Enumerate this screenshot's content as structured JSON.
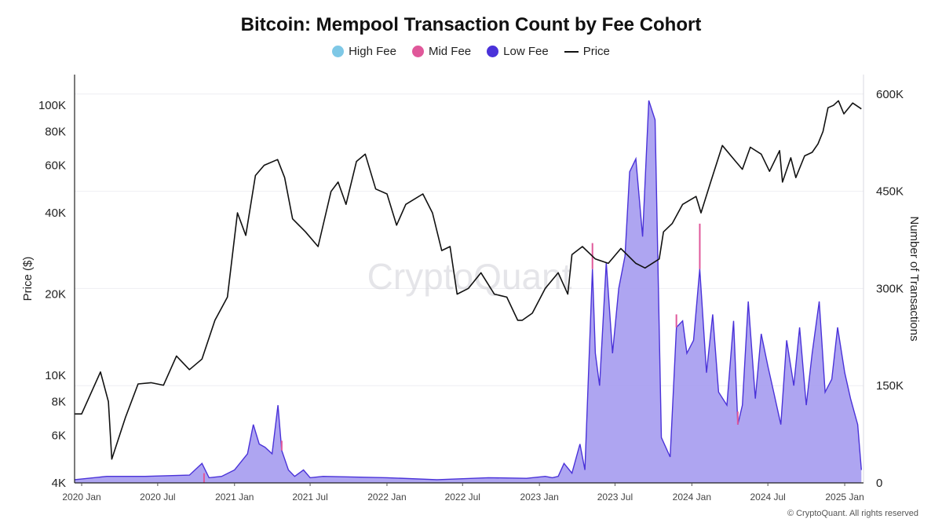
{
  "chart_data": {
    "type": "line",
    "title": "Bitcoin: Mempool Transaction Count by Fee Cohort",
    "legend": [
      "High Fee",
      "Mid Fee",
      "Low Fee",
      "Price"
    ],
    "legend_placement": "top-center",
    "colors": {
      "high_fee": "#7ec8e6",
      "mid_fee": "#e0589a",
      "low_fee": "#4a32d9",
      "low_fee_fill": "#a59bf0",
      "price": "#111111"
    },
    "y_left": {
      "label": "Price ($)",
      "scale": "log",
      "range": [
        4000,
        130000
      ],
      "ticks": [
        4000,
        6000,
        8000,
        10000,
        20000,
        40000,
        60000,
        80000,
        100000
      ],
      "tick_labels": [
        "4K",
        "6K",
        "8K",
        "10K",
        "20K",
        "40K",
        "60K",
        "80K",
        "100K"
      ]
    },
    "y_right": {
      "label": "Number of Transactions",
      "scale": "linear",
      "range": [
        0,
        630000
      ],
      "ticks": [
        0,
        150000,
        300000,
        450000,
        600000
      ],
      "tick_labels": [
        "0",
        "150K",
        "300K",
        "450K",
        "600K"
      ]
    },
    "x_axis": {
      "range": [
        "2019-12-15",
        "2025-02-15"
      ],
      "ticks": [
        "2020-01-01",
        "2020-07-01",
        "2021-01-01",
        "2021-07-01",
        "2022-01-01",
        "2022-07-01",
        "2023-01-01",
        "2023-07-01",
        "2024-01-01",
        "2024-07-01",
        "2025-01-01"
      ],
      "tick_labels": [
        "2020 Jan",
        "2020 Jul",
        "2021 Jan",
        "2021 Jul",
        "2022 Jan",
        "2022 Jul",
        "2023 Jan",
        "2023 Jul",
        "2024 Jan",
        "2024 Jul",
        "2025 Jan"
      ]
    },
    "grid": true,
    "series": [
      {
        "name": "Price",
        "axis": "left",
        "x": [
          "2019-12-15",
          "2020-01-01",
          "2020-02-15",
          "2020-03-05",
          "2020-03-13",
          "2020-04-15",
          "2020-05-15",
          "2020-06-15",
          "2020-07-15",
          "2020-08-15",
          "2020-09-15",
          "2020-10-15",
          "2020-11-15",
          "2020-12-15",
          "2021-01-08",
          "2021-01-28",
          "2021-02-20",
          "2021-03-13",
          "2021-04-14",
          "2021-05-01",
          "2021-05-20",
          "2021-06-20",
          "2021-07-20",
          "2021-08-20",
          "2021-09-06",
          "2021-09-25",
          "2021-10-20",
          "2021-11-10",
          "2021-12-05",
          "2022-01-01",
          "2022-01-24",
          "2022-02-15",
          "2022-03-28",
          "2022-04-20",
          "2022-05-12",
          "2022-06-01",
          "2022-06-18",
          "2022-07-15",
          "2022-08-14",
          "2022-09-15",
          "2022-10-15",
          "2022-11-10",
          "2022-11-21",
          "2022-12-15",
          "2023-01-15",
          "2023-02-15",
          "2023-03-10",
          "2023-03-20",
          "2023-04-14",
          "2023-05-15",
          "2023-06-15",
          "2023-07-15",
          "2023-08-20",
          "2023-09-11",
          "2023-10-15",
          "2023-10-25",
          "2023-11-15",
          "2023-12-10",
          "2024-01-11",
          "2024-01-23",
          "2024-02-15",
          "2024-03-14",
          "2024-04-15",
          "2024-05-01",
          "2024-05-20",
          "2024-06-15",
          "2024-07-05",
          "2024-07-29",
          "2024-08-05",
          "2024-08-25",
          "2024-09-06",
          "2024-09-27",
          "2024-10-15",
          "2024-10-29",
          "2024-11-10",
          "2024-11-22",
          "2024-12-05",
          "2024-12-17",
          "2024-12-30",
          "2025-01-20",
          "2025-02-10"
        ],
        "values": [
          7200,
          7200,
          10300,
          8000,
          4900,
          7000,
          9300,
          9400,
          9200,
          11800,
          10500,
          11500,
          16000,
          19500,
          40000,
          33000,
          55000,
          60000,
          63000,
          54000,
          38000,
          34000,
          30000,
          48000,
          52000,
          43000,
          62000,
          66000,
          49000,
          47000,
          36000,
          43000,
          47000,
          40000,
          29000,
          30000,
          20000,
          21000,
          24000,
          20000,
          19500,
          16000,
          16000,
          17000,
          21000,
          24000,
          20000,
          28000,
          30000,
          27000,
          26000,
          29500,
          26000,
          25000,
          27000,
          34000,
          36500,
          43000,
          46000,
          40000,
          52000,
          71000,
          62000,
          58000,
          70000,
          66000,
          57000,
          68000,
          52000,
          64000,
          54000,
          65000,
          67000,
          72000,
          80000,
          98000,
          100000,
          104000,
          93000,
          102000,
          97000
        ]
      },
      {
        "name": "Low Fee",
        "axis": "right",
        "x": [
          "2019-12-15",
          "2020-03-01",
          "2020-06-01",
          "2020-09-15",
          "2020-10-15",
          "2020-11-01",
          "2020-12-01",
          "2021-01-01",
          "2021-02-01",
          "2021-02-15",
          "2021-03-01",
          "2021-03-15",
          "2021-04-01",
          "2021-04-15",
          "2021-04-24",
          "2021-05-10",
          "2021-05-25",
          "2021-06-15",
          "2021-07-01",
          "2021-08-01",
          "2022-01-01",
          "2022-05-01",
          "2022-09-01",
          "2022-12-01",
          "2023-01-15",
          "2023-02-01",
          "2023-02-15",
          "2023-03-01",
          "2023-03-20",
          "2023-04-08",
          "2023-04-20",
          "2023-05-08",
          "2023-05-15",
          "2023-05-25",
          "2023-06-10",
          "2023-06-25",
          "2023-07-10",
          "2023-07-25",
          "2023-08-05",
          "2023-08-20",
          "2023-09-05",
          "2023-09-20",
          "2023-10-05",
          "2023-10-20",
          "2023-11-10",
          "2023-11-25",
          "2023-12-10",
          "2023-12-20",
          "2024-01-05",
          "2024-01-20",
          "2024-02-05",
          "2024-02-20",
          "2024-03-05",
          "2024-03-25",
          "2024-04-10",
          "2024-04-20",
          "2024-05-01",
          "2024-05-15",
          "2024-06-01",
          "2024-06-15",
          "2024-07-01",
          "2024-07-15",
          "2024-08-01",
          "2024-08-15",
          "2024-09-01",
          "2024-09-15",
          "2024-10-01",
          "2024-10-15",
          "2024-11-01",
          "2024-11-15",
          "2024-12-01",
          "2024-12-15",
          "2025-01-01",
          "2025-01-15",
          "2025-02-01",
          "2025-02-10"
        ],
        "values": [
          5000,
          10000,
          10000,
          12000,
          30000,
          8000,
          10000,
          20000,
          45000,
          90000,
          60000,
          55000,
          45000,
          120000,
          50000,
          20000,
          10000,
          20000,
          8000,
          10000,
          8000,
          5000,
          8000,
          7000,
          10000,
          8000,
          10000,
          30000,
          15000,
          60000,
          20000,
          330000,
          200000,
          150000,
          340000,
          200000,
          300000,
          350000,
          480000,
          500000,
          380000,
          590000,
          560000,
          70000,
          40000,
          240000,
          250000,
          200000,
          220000,
          330000,
          170000,
          260000,
          140000,
          120000,
          250000,
          90000,
          120000,
          280000,
          130000,
          230000,
          180000,
          140000,
          90000,
          220000,
          150000,
          240000,
          120000,
          200000,
          280000,
          140000,
          160000,
          240000,
          170000,
          130000,
          90000,
          20000
        ]
      },
      {
        "name": "Mid Fee",
        "axis": "right",
        "x": [
          "2019-12-15",
          "2020-10-20",
          "2021-04-24",
          "2023-05-08",
          "2023-11-25",
          "2024-01-20",
          "2024-04-20",
          "2025-02-10"
        ],
        "values": [
          0,
          15000,
          15000,
          40000,
          20000,
          70000,
          20000,
          0
        ]
      },
      {
        "name": "High Fee",
        "axis": "right",
        "x": [
          "2019-12-15",
          "2025-02-10"
        ],
        "values": [
          0,
          0
        ]
      }
    ]
  },
  "watermark": "CryptoQuant",
  "footer": "© CryptoQuant. All rights reserved"
}
